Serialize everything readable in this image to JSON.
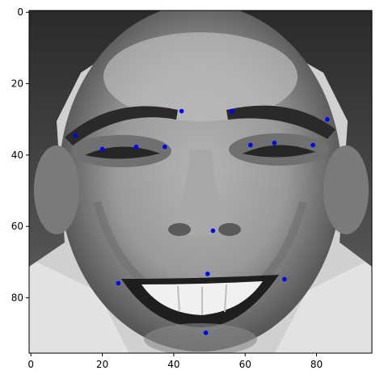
{
  "chart_data": {
    "type": "scatter",
    "background": "grayscale face image (96x96 pixels) with facial keypoints overlaid",
    "xlim": [
      -0.5,
      95.5
    ],
    "ylim": [
      95.5,
      -0.5
    ],
    "y_inverted": true,
    "x_ticks": [
      0,
      20,
      40,
      60,
      80
    ],
    "y_ticks": [
      0,
      20,
      40,
      60,
      80
    ],
    "grid": false,
    "point_color": "#0000ff",
    "series": [
      {
        "points": [
          {
            "x": 12.5,
            "y": 34.5
          },
          {
            "x": 20.0,
            "y": 38.3
          },
          {
            "x": 29.5,
            "y": 37.7
          },
          {
            "x": 37.5,
            "y": 37.7
          },
          {
            "x": 42.2,
            "y": 27.7
          },
          {
            "x": 56.3,
            "y": 27.7
          },
          {
            "x": 61.5,
            "y": 37.2
          },
          {
            "x": 68.2,
            "y": 36.6
          },
          {
            "x": 79.0,
            "y": 37.2
          },
          {
            "x": 83.0,
            "y": 30.0
          },
          {
            "x": 51.0,
            "y": 61.2
          },
          {
            "x": 49.5,
            "y": 73.3
          },
          {
            "x": 24.5,
            "y": 75.9
          },
          {
            "x": 71.0,
            "y": 74.8
          },
          {
            "x": 49.0,
            "y": 89.8
          }
        ]
      }
    ]
  }
}
